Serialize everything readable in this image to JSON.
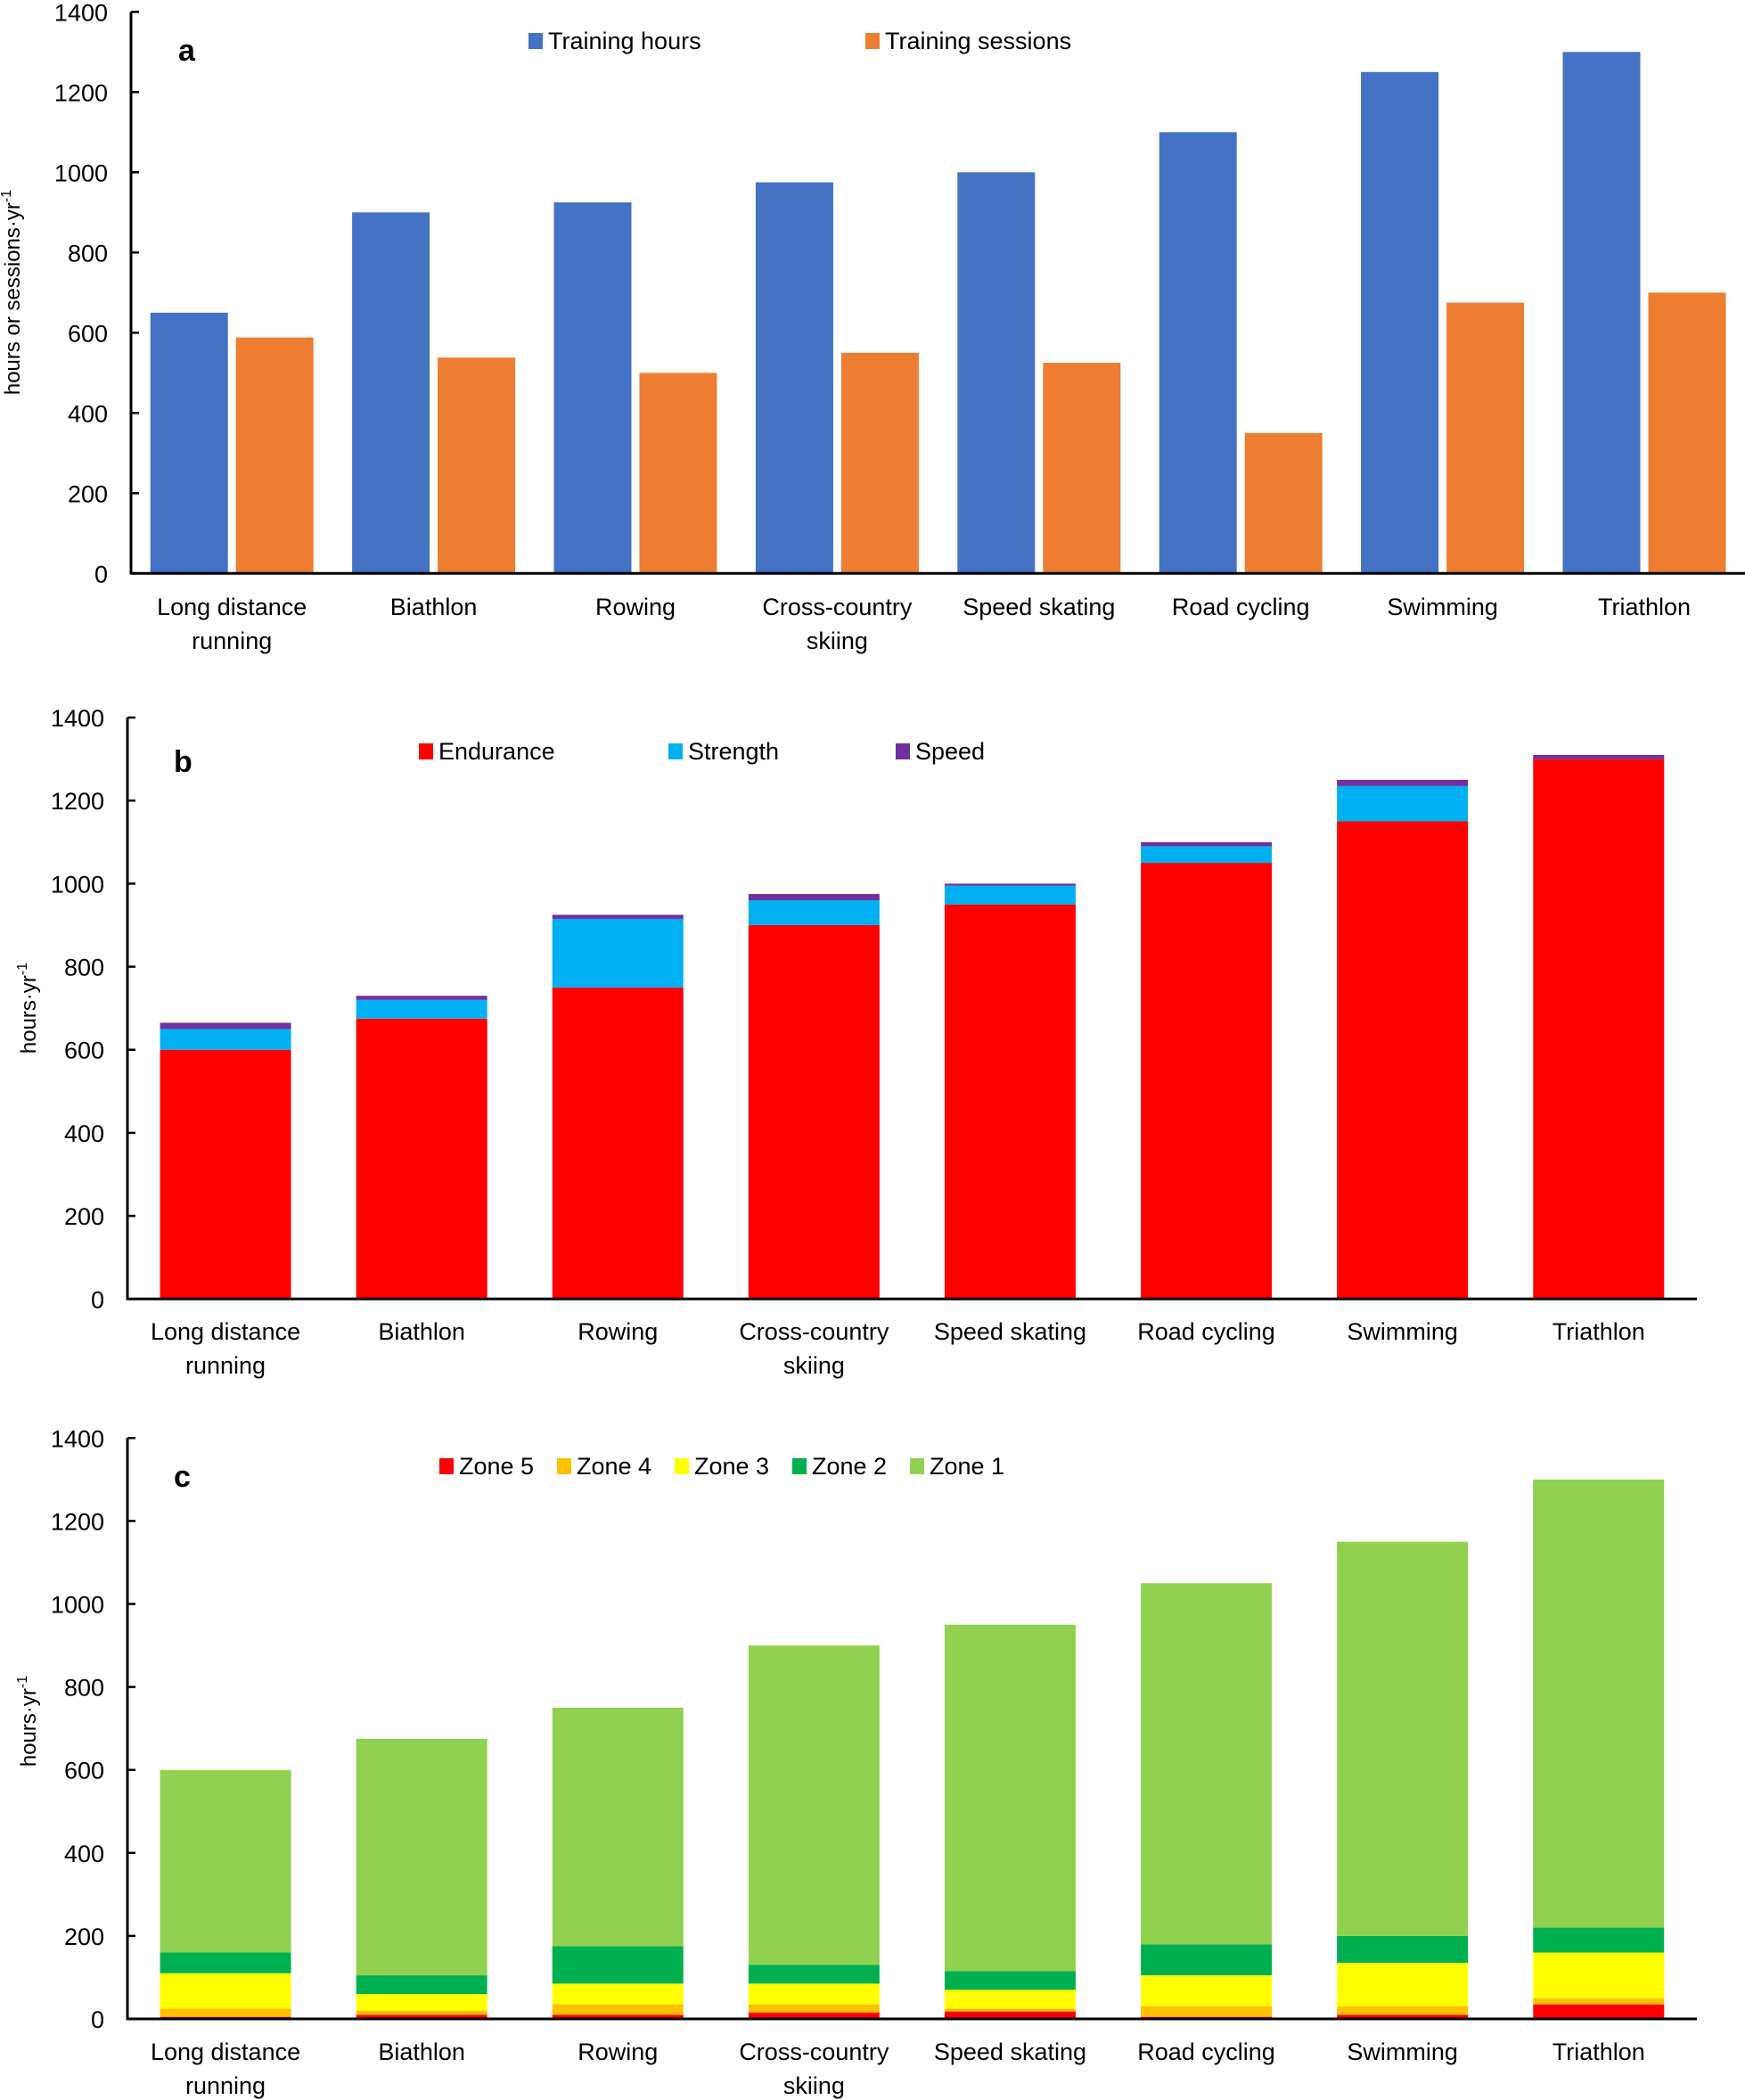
{
  "chart_data": [
    {
      "type": "bar",
      "panel": "a",
      "title": "",
      "xlabel": "",
      "ylabel": "hours or sessions·yr",
      "ylabel_superscript": "-1",
      "ylim": [
        0,
        1400
      ],
      "yticks": [
        0,
        200,
        400,
        600,
        800,
        1000,
        1200,
        1400
      ],
      "grid": false,
      "legend_position": "top-center",
      "categories": [
        [
          "Long distance",
          "running"
        ],
        [
          "Biathlon"
        ],
        [
          "Rowing"
        ],
        [
          "Cross-country",
          "skiing"
        ],
        [
          "Speed skating"
        ],
        [
          "Road cycling"
        ],
        [
          "Swimming"
        ],
        [
          "Triathlon"
        ]
      ],
      "series": [
        {
          "name": "Training hours",
          "color": "#4472C4",
          "values": [
            650,
            900,
            925,
            975,
            1000,
            1100,
            1250,
            1300
          ]
        },
        {
          "name": "Training sessions",
          "color": "#ED7D31",
          "values": [
            588,
            538,
            500,
            550,
            525,
            350,
            675,
            700
          ]
        }
      ]
    },
    {
      "type": "bar",
      "stacked": true,
      "panel": "b",
      "title": "",
      "xlabel": "",
      "ylabel": "hours·yr",
      "ylabel_superscript": "-1",
      "ylim": [
        0,
        1400
      ],
      "yticks": [
        0,
        200,
        400,
        600,
        800,
        1000,
        1200,
        1400
      ],
      "grid": false,
      "legend_position": "top-center",
      "categories": [
        [
          "Long distance",
          "running"
        ],
        [
          "Biathlon"
        ],
        [
          "Rowing"
        ],
        [
          "Cross-country",
          "skiing"
        ],
        [
          "Speed skating"
        ],
        [
          "Road cycling"
        ],
        [
          "Swimming"
        ],
        [
          "Triathlon"
        ]
      ],
      "series": [
        {
          "name": "Endurance",
          "color": "#FF0000",
          "values": [
            600,
            675,
            750,
            900,
            950,
            1050,
            1150,
            1300
          ]
        },
        {
          "name": "Strength",
          "color": "#00B0F0",
          "values": [
            50,
            45,
            165,
            60,
            45,
            40,
            85,
            0
          ]
        },
        {
          "name": "Speed",
          "color": "#7030A0",
          "values": [
            15,
            10,
            10,
            15,
            5,
            10,
            15,
            10
          ]
        }
      ]
    },
    {
      "type": "bar",
      "stacked": true,
      "panel": "c",
      "title": "",
      "xlabel": "",
      "ylabel": "hours·yr",
      "ylabel_superscript": "-1",
      "ylim": [
        0,
        1400
      ],
      "yticks": [
        0,
        200,
        400,
        600,
        800,
        1000,
        1200,
        1400
      ],
      "grid": false,
      "legend_position": "top-center",
      "categories": [
        [
          "Long distance",
          "running"
        ],
        [
          "Biathlon"
        ],
        [
          "Rowing"
        ],
        [
          "Cross-country",
          "skiing"
        ],
        [
          "Speed skating"
        ],
        [
          "Road cycling"
        ],
        [
          "Swimming"
        ],
        [
          "Triathlon"
        ]
      ],
      "series": [
        {
          "name": "Zone 5",
          "color": "#FF0000",
          "values": [
            5,
            10,
            10,
            15,
            18,
            5,
            10,
            35
          ]
        },
        {
          "name": "Zone 4",
          "color": "#FFC000",
          "values": [
            20,
            10,
            25,
            20,
            7,
            25,
            20,
            15
          ]
        },
        {
          "name": "Zone 3",
          "color": "#FFFF00",
          "values": [
            85,
            40,
            50,
            50,
            45,
            75,
            105,
            110
          ]
        },
        {
          "name": "Zone 2",
          "color": "#00B050",
          "values": [
            50,
            45,
            90,
            45,
            45,
            75,
            65,
            60
          ]
        },
        {
          "name": "Zone 1",
          "color": "#92D050",
          "values": [
            440,
            570,
            575,
            770,
            835,
            870,
            950,
            1080
          ]
        }
      ]
    }
  ]
}
